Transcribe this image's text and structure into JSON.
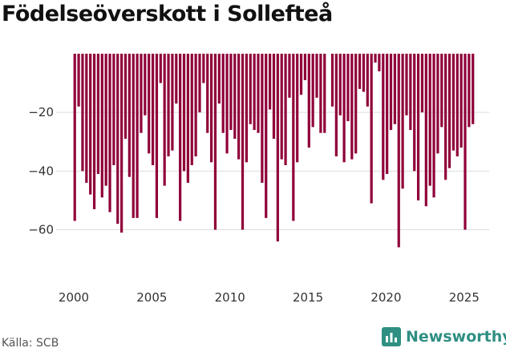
{
  "chart_data": {
    "type": "bar",
    "title": "Födelseöverskott i Sollefteå",
    "xlabel": "",
    "ylabel": "",
    "ylim": [
      -76,
      0
    ],
    "xlim": [
      2000.0,
      2026.5
    ],
    "y_ticks": [
      -20,
      -40,
      -60
    ],
    "y_tick_labels": [
      "−20",
      "−40",
      "−60"
    ],
    "x_ticks": [
      2000,
      2005,
      2010,
      2015,
      2020,
      2025
    ],
    "x_tick_labels": [
      "2000",
      "2005",
      "2010",
      "2015",
      "2020",
      "2025"
    ],
    "grid": true,
    "bar_color": "#8f0039",
    "series": [
      {
        "name": "Födelseöverskott",
        "start_year": 2000,
        "periods_per_year": 4,
        "values": [
          -57,
          -18,
          -40,
          -44,
          -48,
          -53,
          -41,
          -49,
          -45,
          -54,
          -38,
          -58,
          -61,
          -29,
          -42,
          -56,
          -56,
          -27,
          -21,
          -34,
          -38,
          -56,
          -10,
          -45,
          -35,
          -33,
          -17,
          -57,
          -40,
          -44,
          -38,
          -35,
          -20,
          -10,
          -27,
          -37,
          -60,
          -17,
          -27,
          -34,
          -26,
          -29,
          -36,
          -60,
          -37,
          -24,
          -26,
          -27,
          -44,
          -56,
          -19,
          -29,
          -64,
          -36,
          -38,
          -15,
          -57,
          -37,
          -14,
          -9,
          -32,
          -25,
          -15,
          -27,
          -27,
          null,
          -18,
          -35,
          -21,
          -37,
          -23,
          -36,
          -34,
          -12,
          -13,
          -18,
          -51,
          -3,
          -6,
          -43,
          -41,
          -26,
          -24,
          -66,
          -46,
          -21,
          -26,
          -40,
          -50,
          -20,
          -52,
          -45,
          -49,
          -34,
          -25,
          -43,
          -39,
          -33,
          -35,
          -32,
          -60,
          -25,
          -24
        ]
      }
    ]
  },
  "source": "Källa: SCB",
  "brand": {
    "name": "Newsworthy",
    "color": "#2f8f83"
  }
}
